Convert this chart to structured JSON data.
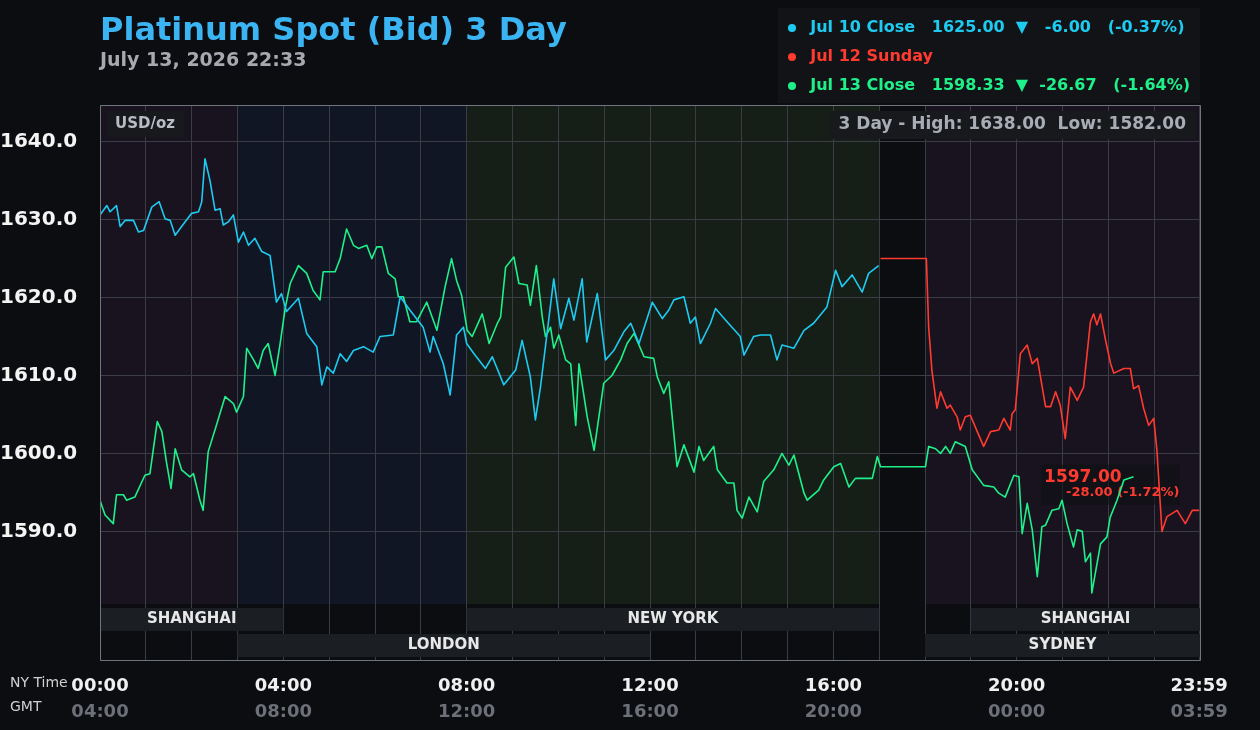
{
  "chart_data": {
    "type": "line",
    "title": "Platinum Spot (Bid) 3 Day",
    "subtitle": "July 13, 2026 22:33",
    "ylabel": "USD/oz",
    "xlabel": "NY Time",
    "x2label": "GMT",
    "annotations": [
      "3 Day - High: 1638.00  Low: 1582.00",
      {
        "text": "1597.00",
        "x": 22.55,
        "y": 1597
      },
      {
        "text": "-28.00 (-1.72%)",
        "x": 22.55,
        "y": 1597
      }
    ],
    "xlim": [
      0,
      24
    ],
    "x2lim": [
      "2026-07-13T04:00",
      "2026-07-14T04:00"
    ],
    "xticks": [
      {
        "value": 0,
        "label": "00:00"
      },
      {
        "value": 1,
        "label": null
      },
      {
        "value": 2,
        "label": null
      },
      {
        "value": 3,
        "label": null
      },
      {
        "value": 4,
        "label": "04:00"
      },
      {
        "value": 5,
        "label": null
      },
      {
        "value": 6,
        "label": null
      },
      {
        "value": 7,
        "label": null
      },
      {
        "value": 8,
        "label": "08:00"
      },
      {
        "value": 9,
        "label": null
      },
      {
        "value": 10,
        "label": null
      },
      {
        "value": 11,
        "label": null
      },
      {
        "value": 12,
        "label": "12:00"
      },
      {
        "value": 13,
        "label": null
      },
      {
        "value": 14,
        "label": null
      },
      {
        "value": 15,
        "label": null
      },
      {
        "value": 16,
        "label": "16:00"
      },
      {
        "value": 17,
        "label": null
      },
      {
        "value": 18,
        "label": null
      },
      {
        "value": 19,
        "label": null
      },
      {
        "value": 20,
        "label": "20:00"
      },
      {
        "value": 21,
        "label": null
      },
      {
        "value": 22,
        "label": null
      },
      {
        "value": 23,
        "label": null
      },
      {
        "value": 23.98,
        "label": "23:59"
      }
    ],
    "x2ticks": [
      {
        "value": "2026-07-13T04:00",
        "label": "04:00"
      },
      {
        "value": "2026-07-13T08:00",
        "label": "08:00"
      },
      {
        "value": "2026-07-13T12:00",
        "label": "12:00"
      },
      {
        "value": "2026-07-13T16:00",
        "label": "16:00"
      },
      {
        "value": "2026-07-13T20:00",
        "label": "20:00"
      },
      {
        "value": "2026-07-14T00:00",
        "label": "00:00"
      },
      {
        "value": "2026-07-14T03:59",
        "label": "03:59"
      }
    ],
    "ylim": [
      1573.5,
      1644.7
    ],
    "yticks": [
      {
        "value": 1590,
        "label": "1590.0"
      },
      {
        "value": 1600,
        "label": "1600.0"
      },
      {
        "value": 1610,
        "label": "1610.0"
      },
      {
        "value": 1620,
        "label": "1620.0"
      },
      {
        "value": 1630,
        "label": "1630.0"
      },
      {
        "value": 1640,
        "label": "1640.0"
      }
    ],
    "grid": true,
    "legend": "top right",
    "bands": [
      {
        "axis": "x",
        "from": 0,
        "to": 3,
        "color": "#19121f"
      },
      {
        "axis": "x",
        "from": 3,
        "to": 8,
        "color": "#111624"
      },
      {
        "axis": "x",
        "from": 8,
        "to": 17,
        "color": "#161e18"
      },
      {
        "axis": "x",
        "from": 18,
        "to": 24,
        "color": "#19121f"
      },
      {
        "axis": "x",
        "from": 0,
        "to": 4,
        "label": "SHANGHAI",
        "color": "#1b1e23"
      },
      {
        "axis": "x",
        "from": 3,
        "to": 12,
        "label": "LONDON",
        "color": "#1b1e23"
      },
      {
        "axis": "x",
        "from": 8,
        "to": 17,
        "label": "NEW YORK",
        "color": "#1b1e23"
      },
      {
        "axis": "x",
        "from": 19,
        "to": 24,
        "label": "SHANGHAI",
        "color": "#1b1e23"
      },
      {
        "axis": "x",
        "from": 18,
        "to": 24,
        "label": "SYDNEY",
        "color": "#1b1e23"
      }
    ],
    "series": [
      {
        "name": "Jul 10 Close   1625.00  ▼   -6.00   (-0.37%)",
        "color": "#1ecbf0",
        "x": [
          0,
          0.15,
          0.22,
          0.36,
          0.44,
          0.55,
          0.73,
          0.84,
          0.95,
          1.13,
          1.29,
          1.42,
          1.53,
          1.64,
          1.78,
          2.0,
          2.15,
          2.22,
          2.29,
          2.4,
          2.51,
          2.62,
          2.69,
          2.8,
          2.91,
          3.02,
          3.13,
          3.24,
          3.38,
          3.53,
          3.71,
          3.85,
          3.96,
          4.07,
          4.33,
          4.51,
          4.73,
          4.84,
          4.95,
          5.09,
          5.24,
          5.38,
          5.53,
          5.75,
          5.96,
          6.11,
          6.4,
          6.55,
          6.76,
          7.05,
          7.2,
          7.27,
          7.49,
          7.64,
          7.78,
          7.93,
          8.0,
          8.16,
          8.41,
          8.56,
          8.81,
          9.07,
          9.21,
          9.39,
          9.5,
          9.61,
          9.9,
          10.05,
          10.23,
          10.34,
          10.52,
          10.62,
          10.85,
          11.03,
          11.21,
          11.43,
          11.58,
          11.76,
          12.05,
          12.27,
          12.41,
          12.52,
          12.74,
          12.88,
          12.99,
          13.1,
          13.32,
          13.43,
          13.68,
          13.97,
          14.05,
          14.26,
          14.41,
          14.63,
          14.77,
          14.88,
          15.14,
          15.36,
          15.57,
          15.86,
          16.05,
          16.19,
          16.41,
          16.63,
          16.77,
          16.99
        ],
        "values": [
          1630.6,
          1631.8,
          1631,
          1631.8,
          1629.1,
          1629.9,
          1629.9,
          1628.4,
          1628.6,
          1631.6,
          1632.3,
          1630.1,
          1629.9,
          1628,
          1629.1,
          1630.8,
          1631,
          1632.3,
          1637.8,
          1635,
          1631.2,
          1631.4,
          1629.3,
          1629.7,
          1630.6,
          1627.1,
          1628.4,
          1626.7,
          1627.6,
          1625.9,
          1625.4,
          1619.4,
          1620.5,
          1618.2,
          1619.9,
          1615.4,
          1613.7,
          1608.8,
          1611.1,
          1610.3,
          1612.8,
          1611.8,
          1613.2,
          1613.7,
          1613,
          1615,
          1615.2,
          1620.1,
          1618.4,
          1616.2,
          1613,
          1615,
          1611.5,
          1607.5,
          1615.2,
          1616.2,
          1614.1,
          1612.8,
          1610.9,
          1612.4,
          1608.8,
          1610.7,
          1614.5,
          1609.8,
          1604.3,
          1608.5,
          1622.4,
          1616,
          1619.9,
          1617.1,
          1622.4,
          1614.3,
          1620.5,
          1612,
          1613.2,
          1615.6,
          1616.7,
          1614.1,
          1619.4,
          1617.3,
          1618.4,
          1619.7,
          1620.1,
          1616.7,
          1617.5,
          1614.1,
          1616.7,
          1618.6,
          1616.9,
          1615,
          1612.6,
          1615,
          1615.2,
          1615.2,
          1612,
          1613.9,
          1613.5,
          1615.8,
          1616.7,
          1618.8,
          1623.5,
          1621.4,
          1622.9,
          1620.7,
          1623.1,
          1624.1
        ]
      },
      {
        "name": "Jul 12 Sunday",
        "color": "#ff3b30",
        "x": [
          17.03,
          18.03,
          18.08,
          18.15,
          18.26,
          18.34,
          18.48,
          18.55,
          18.7,
          18.77,
          18.88,
          18.99,
          19.14,
          19.28,
          19.43,
          19.61,
          19.72,
          19.86,
          19.9,
          19.97,
          20.08,
          20.23,
          20.34,
          20.45,
          20.63,
          20.74,
          20.85,
          20.95,
          21.06,
          21.17,
          21.32,
          21.46,
          21.61,
          21.68,
          21.75,
          21.83,
          21.94,
          22.05,
          22.12,
          22.34,
          22.48,
          22.55,
          22.66,
          22.77,
          22.88,
          22.99,
          23.06,
          23.17,
          23.28,
          23.5,
          23.68,
          23.83,
          23.98
        ],
        "values": [
          1625,
          1625,
          1616.2,
          1610.7,
          1605.8,
          1607.9,
          1605.8,
          1606.2,
          1604.7,
          1603,
          1604.7,
          1604.9,
          1602.8,
          1600.9,
          1602.8,
          1603,
          1604.5,
          1603,
          1605.1,
          1605.6,
          1612.8,
          1613.9,
          1611.5,
          1612.2,
          1606,
          1606,
          1607.9,
          1606.2,
          1601.9,
          1608.5,
          1606.8,
          1608.5,
          1616.9,
          1617.9,
          1616.5,
          1617.9,
          1614.5,
          1611.5,
          1610.3,
          1610.9,
          1610.9,
          1608.3,
          1608.7,
          1605.8,
          1603.6,
          1604.5,
          1600.4,
          1590,
          1591.9,
          1592.7,
          1591,
          1592.7,
          1592.7
        ]
      },
      {
        "name": "Jul 13 Close   1598.33  ▼  -26.67   (-1.64%)",
        "color": "#1ef08a",
        "x": [
          0,
          0.11,
          0.29,
          0.36,
          0.51,
          0.58,
          0.76,
          0.98,
          1.09,
          1.16,
          1.25,
          1.35,
          1.45,
          1.55,
          1.64,
          1.78,
          1.96,
          2.04,
          2.18,
          2.25,
          2.36,
          2.55,
          2.73,
          2.91,
          2.98,
          3.13,
          3.2,
          3.35,
          3.45,
          3.56,
          3.67,
          3.82,
          3.93,
          4.04,
          4.15,
          4.33,
          4.51,
          4.65,
          4.8,
          4.87,
          5.13,
          5.24,
          5.38,
          5.53,
          5.64,
          5.82,
          5.93,
          6.04,
          6.15,
          6.29,
          6.44,
          6.51,
          6.62,
          6.76,
          6.91,
          7.02,
          7.13,
          7.35,
          7.53,
          7.67,
          7.78,
          7.89,
          8.01,
          8.12,
          8.34,
          8.49,
          8.67,
          8.74,
          8.85,
          9.03,
          9.14,
          9.32,
          9.39,
          9.52,
          9.65,
          9.72,
          9.83,
          9.9,
          10.01,
          10.16,
          10.27,
          10.38,
          10.45,
          10.63,
          10.78,
          10.99,
          11.17,
          11.36,
          11.5,
          11.65,
          11.87,
          12.08,
          12.16,
          12.3,
          12.41,
          12.59,
          12.74,
          12.96,
          13.07,
          13.17,
          13.39,
          13.47,
          13.68,
          13.83,
          13.9,
          14.01,
          14.16,
          14.34,
          14.48,
          14.7,
          14.88,
          15.03,
          15.14,
          15.36,
          15.43,
          15.68,
          15.79,
          16.01,
          16.16,
          16.34,
          16.48,
          16.85,
          16.96,
          17.03,
          18.01,
          18.08,
          18.23,
          18.34,
          18.45,
          18.55,
          18.66,
          18.88,
          19.03,
          19.28,
          19.5,
          19.61,
          19.75,
          19.94,
          20.05,
          20.12,
          20.23,
          20.34,
          20.45,
          20.55,
          20.63,
          20.77,
          20.92,
          20.99,
          21.1,
          21.24,
          21.32,
          21.43,
          21.5,
          21.61,
          21.64,
          21.83,
          21.97,
          22.04,
          22.19,
          22.34,
          22.55
        ],
        "values": [
          1594,
          1592.1,
          1591,
          1594.7,
          1594.7,
          1594,
          1594.4,
          1597.2,
          1597.4,
          1600.4,
          1604.1,
          1602.8,
          1598.9,
          1595.5,
          1600.6,
          1597.9,
          1597,
          1597.4,
          1594,
          1592.7,
          1600.2,
          1603.8,
          1607.3,
          1606.4,
          1605.3,
          1607.3,
          1613.5,
          1612,
          1610.9,
          1613.2,
          1614.1,
          1610,
          1614.1,
          1618.6,
          1621.8,
          1624.1,
          1623.1,
          1620.9,
          1619.7,
          1623.3,
          1623.3,
          1625,
          1628.8,
          1626.7,
          1626.3,
          1626.7,
          1625,
          1626.5,
          1626.5,
          1623.1,
          1622.4,
          1620.1,
          1620.1,
          1616.9,
          1616.9,
          1618.2,
          1619.4,
          1615.8,
          1621.4,
          1625,
          1622.2,
          1620.3,
          1615.8,
          1615,
          1617.9,
          1614.1,
          1616.7,
          1617.5,
          1623.9,
          1625.2,
          1621.8,
          1621.6,
          1619,
          1624.1,
          1617.5,
          1615,
          1616.2,
          1613.5,
          1615.2,
          1612,
          1611.5,
          1603.6,
          1611.5,
          1604.7,
          1600.4,
          1609,
          1610,
          1612,
          1614.1,
          1615.4,
          1612.4,
          1612.2,
          1609.8,
          1607.7,
          1609.2,
          1598.3,
          1601.1,
          1597.6,
          1600.9,
          1599.1,
          1600.9,
          1597.9,
          1596.2,
          1596.2,
          1592.7,
          1591.7,
          1594.4,
          1592.5,
          1596.4,
          1597.9,
          1600,
          1598.5,
          1599.8,
          1594.9,
          1594,
          1595.3,
          1596.6,
          1598.3,
          1598.7,
          1595.7,
          1596.8,
          1596.8,
          1599.6,
          1598.3,
          1598.3,
          1600.9,
          1600.6,
          1600,
          1600.9,
          1600,
          1601.5,
          1600.9,
          1597.9,
          1595.9,
          1595.7,
          1594.9,
          1594.4,
          1597.2,
          1597,
          1589.7,
          1593.6,
          1590.2,
          1584.2,
          1590.6,
          1590.8,
          1592.7,
          1592.9,
          1594,
          1591,
          1588,
          1590.2,
          1590,
          1586.1,
          1587.2,
          1582.1,
          1588.4,
          1589.3,
          1591.8,
          1594,
          1596.6,
          1597
        ]
      }
    ]
  }
}
